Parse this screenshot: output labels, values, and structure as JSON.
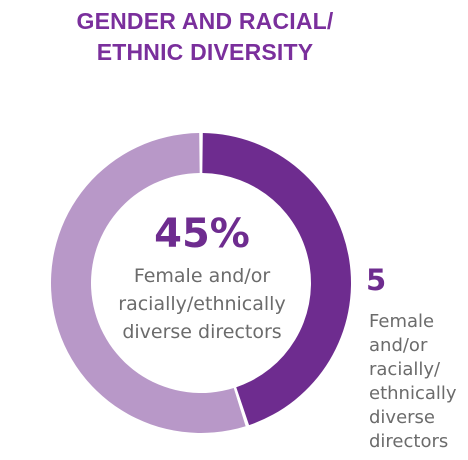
{
  "chart_data": {
    "type": "pie",
    "title": "GENDER AND RACIAL/ ETHNIC DIVERSITY",
    "title_lines": [
      "GENDER AND RACIAL/",
      "ETHNIC DIVERSITY"
    ],
    "categories": [
      "Female and/or racially/ethnically diverse directors",
      ""
    ],
    "values": [
      45,
      55
    ],
    "unit": "%",
    "center_value": "45%",
    "center_label_lines": [
      "Female and/or",
      "racially/ethnically",
      "diverse directors"
    ],
    "side_value": "5",
    "side_label_lines": [
      "Female",
      "and/or",
      "racially/",
      "ethnically",
      "diverse",
      "directors"
    ]
  },
  "colors": {
    "title": "#7a2f9c",
    "highlight": "#6e2c8f",
    "remainder": "#b898c8",
    "text_gray": "#6b6b6b"
  }
}
